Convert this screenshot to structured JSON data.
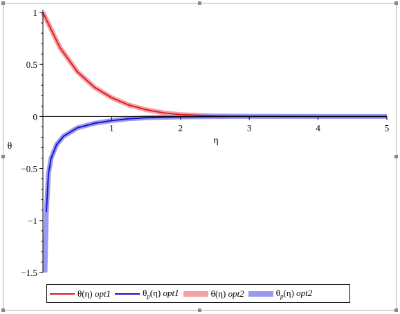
{
  "chart_data": {
    "type": "line",
    "xlabel": "η",
    "ylabel": "θ",
    "xlim": [
      0,
      5
    ],
    "ylim": [
      -1.5,
      1
    ],
    "x_ticks": [
      "1",
      "2",
      "3",
      "4",
      "5"
    ],
    "y_ticks": [
      "1",
      "0.5",
      "0",
      "−0.5",
      "−1",
      "−1.5"
    ],
    "y_tick_values": [
      1,
      0.5,
      0,
      -0.5,
      -1,
      -1.5
    ],
    "x_tick_values": [
      1,
      2,
      3,
      4,
      5
    ],
    "series": [
      {
        "name": "θ(η) opt1",
        "color": "#e0141b",
        "style": "thin",
        "x": [
          0,
          0.25,
          0.5,
          0.75,
          1,
          1.25,
          1.5,
          1.75,
          2,
          2.5,
          3,
          3.5,
          4,
          4.5,
          5
        ],
        "y": [
          1,
          0.66,
          0.43,
          0.28,
          0.18,
          0.11,
          0.065,
          0.035,
          0.018,
          0.006,
          0.002,
          0.001,
          0.0,
          0.0,
          0.0
        ]
      },
      {
        "name": "θp(η) opt1",
        "color": "#1010c8",
        "style": "thin",
        "x": [
          0.05,
          0.08,
          0.12,
          0.2,
          0.3,
          0.5,
          0.75,
          1,
          1.25,
          1.5,
          2,
          2.5,
          3,
          4,
          5
        ],
        "y": [
          -0.92,
          -0.55,
          -0.4,
          -0.27,
          -0.19,
          -0.11,
          -0.065,
          -0.04,
          -0.022,
          -0.012,
          -0.004,
          -0.001,
          0.0,
          0.0,
          0.0
        ]
      },
      {
        "name": "θ(η) opt2",
        "color": "#f4a0a4",
        "style": "thick",
        "x": [
          0,
          0.25,
          0.5,
          0.75,
          1,
          1.25,
          1.5,
          1.75,
          2,
          2.5,
          3,
          3.5,
          4,
          4.5,
          5
        ],
        "y": [
          1,
          0.66,
          0.43,
          0.28,
          0.18,
          0.11,
          0.065,
          0.035,
          0.018,
          0.006,
          0.002,
          0.001,
          0.0,
          0.0,
          0.0
        ]
      },
      {
        "name": "θp(η) opt2",
        "color": "#9999f2",
        "style": "thick",
        "x": [
          0.03,
          0.05,
          0.08,
          0.12,
          0.2,
          0.3,
          0.5,
          0.75,
          1,
          1.25,
          1.5,
          2,
          2.5,
          3,
          4,
          5
        ],
        "y": [
          -1.5,
          -0.92,
          -0.55,
          -0.4,
          -0.27,
          -0.19,
          -0.11,
          -0.065,
          -0.04,
          -0.022,
          -0.012,
          -0.004,
          -0.001,
          0.0,
          0.0,
          0.0
        ]
      }
    ],
    "legend": {
      "position": "bottom",
      "items": [
        {
          "main": "θ(η)",
          "sub": "",
          "tail": "(η)",
          "suffix": "opt1",
          "color": "#e0141b",
          "thick": false
        },
        {
          "main": "θ",
          "sub": "p",
          "tail": "(η)",
          "suffix": "opt1",
          "color": "#1010c8",
          "thick": false
        },
        {
          "main": "θ(η)",
          "sub": "",
          "tail": "(η)",
          "suffix": "opt2",
          "color": "#f4a0a4",
          "thick": true
        },
        {
          "main": "θ",
          "sub": "p",
          "tail": "(η)",
          "suffix": "opt2",
          "color": "#9999f2",
          "thick": true
        }
      ]
    },
    "grid": false
  }
}
